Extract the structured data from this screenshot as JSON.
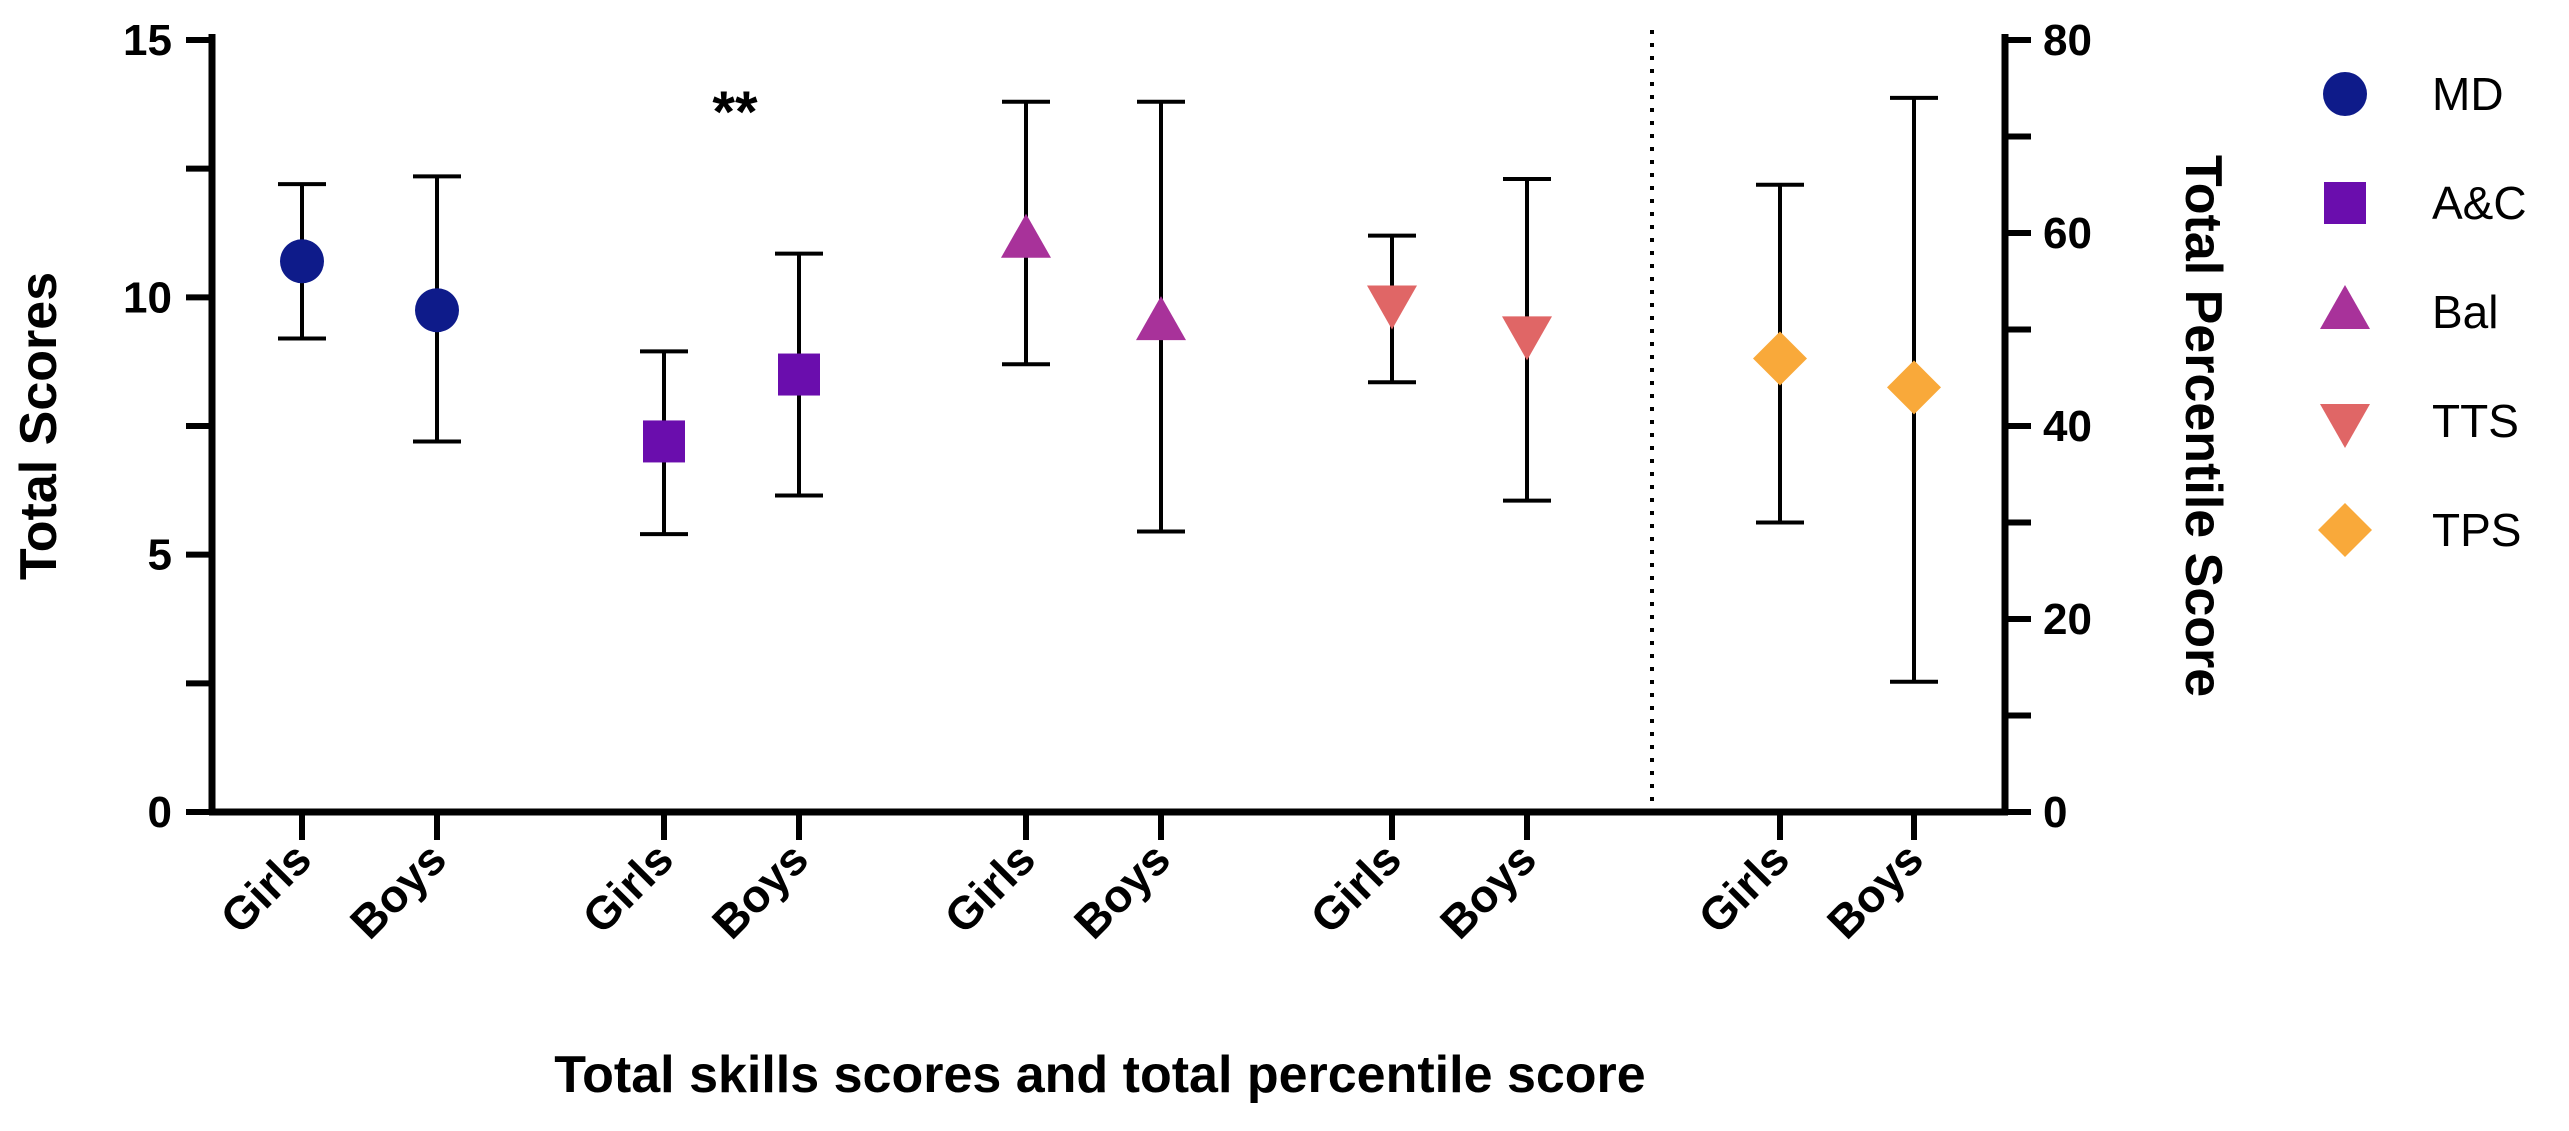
{
  "chart_data": {
    "type": "scatter",
    "xlabel": "Total skills scores and total percentile score",
    "ylabel_left": "Total Scores",
    "ylabel_right": "Total Percentile Score",
    "ylim_left": [
      0,
      15
    ],
    "ylim_right": [
      0,
      80
    ],
    "yticks_left": [
      0,
      5,
      10,
      15
    ],
    "yticks_right": [
      0,
      20,
      40,
      60,
      80
    ],
    "annotation": "**",
    "legend_position": "right",
    "series": [
      {
        "name": "MD",
        "axis": "left",
        "marker": "circle",
        "color": "#0e1b8a",
        "points": [
          {
            "group": "Girls",
            "mean": 10.7,
            "low": 9.2,
            "high": 12.2
          },
          {
            "group": "Boys",
            "mean": 9.75,
            "low": 7.2,
            "high": 12.35
          }
        ]
      },
      {
        "name": "A&C",
        "axis": "left",
        "marker": "square",
        "color": "#6a0dad",
        "points": [
          {
            "group": "Girls",
            "mean": 7.2,
            "low": 5.4,
            "high": 8.95
          },
          {
            "group": "Boys",
            "mean": 8.5,
            "low": 6.15,
            "high": 10.85
          }
        ]
      },
      {
        "name": "Bal",
        "axis": "left",
        "marker": "triangle-up",
        "color": "#a8329a",
        "points": [
          {
            "group": "Girls",
            "mean": 11.1,
            "low": 8.7,
            "high": 13.8
          },
          {
            "group": "Boys",
            "mean": 9.5,
            "low": 5.45,
            "high": 13.8
          }
        ]
      },
      {
        "name": "TTS",
        "axis": "left",
        "marker": "triangle-down",
        "color": "#e06666",
        "points": [
          {
            "group": "Girls",
            "mean": 9.9,
            "low": 8.35,
            "high": 11.2
          },
          {
            "group": "Boys",
            "mean": 9.3,
            "low": 6.05,
            "high": 12.3
          }
        ]
      },
      {
        "name": "TPS",
        "axis": "right",
        "marker": "diamond",
        "color": "#f9a93a",
        "points": [
          {
            "group": "Girls",
            "mean": 47,
            "low": 30,
            "high": 65
          },
          {
            "group": "Boys",
            "mean": 44,
            "low": 13.5,
            "high": 74
          }
        ]
      }
    ]
  }
}
